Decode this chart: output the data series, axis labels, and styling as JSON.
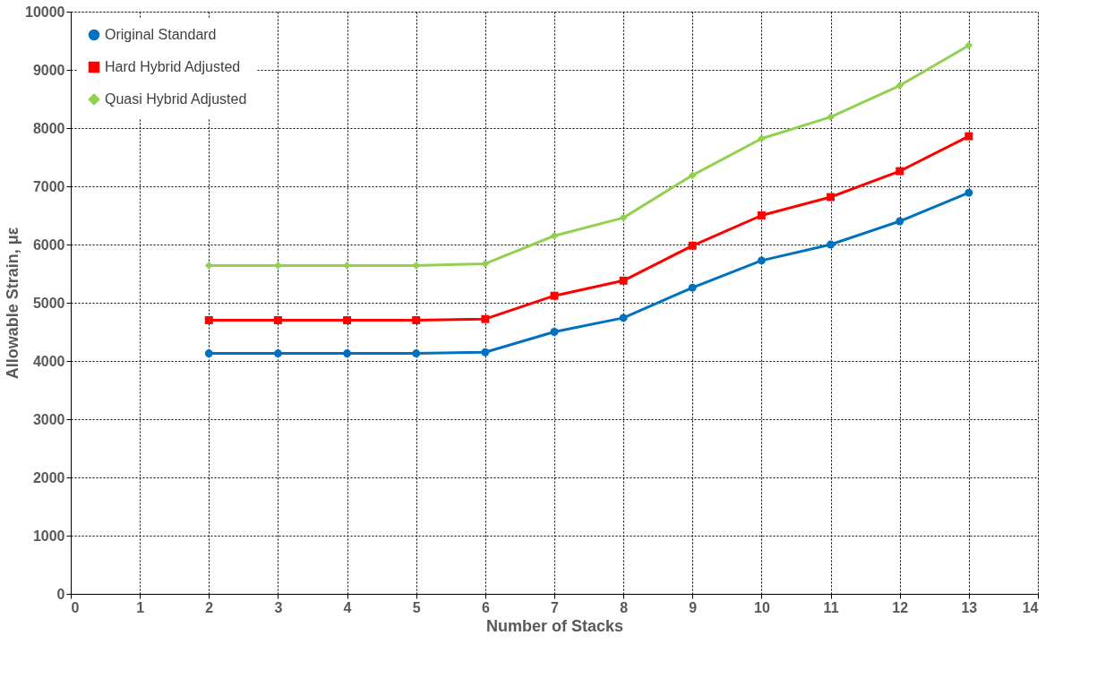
{
  "chart_data": {
    "type": "line",
    "xlabel": "Number of Stacks",
    "ylabel": "Allowable Strain, με",
    "x": [
      2,
      3,
      4,
      5,
      6,
      7,
      8,
      9,
      10,
      11,
      12,
      13
    ],
    "series": [
      {
        "name": "Original Standard",
        "color": "#0070c0",
        "marker": "circle",
        "values": [
          4130,
          4130,
          4130,
          4130,
          4150,
          4500,
          4740,
          5260,
          5725,
          6000,
          6400,
          6890
        ]
      },
      {
        "name": "Hard Hybrid Adjusted",
        "color": "#ff0000",
        "marker": "square",
        "values": [
          4700,
          4700,
          4700,
          4700,
          4720,
          5120,
          5380,
          5980,
          6500,
          6815,
          7260,
          7860
        ]
      },
      {
        "name": "Quasi Hybrid Adjusted",
        "color": "#92d050",
        "marker": "diamond",
        "values": [
          5640,
          5640,
          5640,
          5640,
          5670,
          6150,
          6460,
          7190,
          7820,
          8190,
          8730,
          9420
        ]
      }
    ],
    "xlim": [
      0,
      14
    ],
    "xticks": [
      0,
      1,
      2,
      3,
      4,
      5,
      6,
      7,
      8,
      9,
      10,
      11,
      12,
      13,
      14
    ],
    "ylim": [
      0,
      10000
    ],
    "yticks": [
      0,
      1000,
      2000,
      3000,
      4000,
      5000,
      6000,
      7000,
      8000,
      9000,
      10000
    ],
    "grid": true,
    "legend": "top left",
    "line_style": "solid"
  }
}
